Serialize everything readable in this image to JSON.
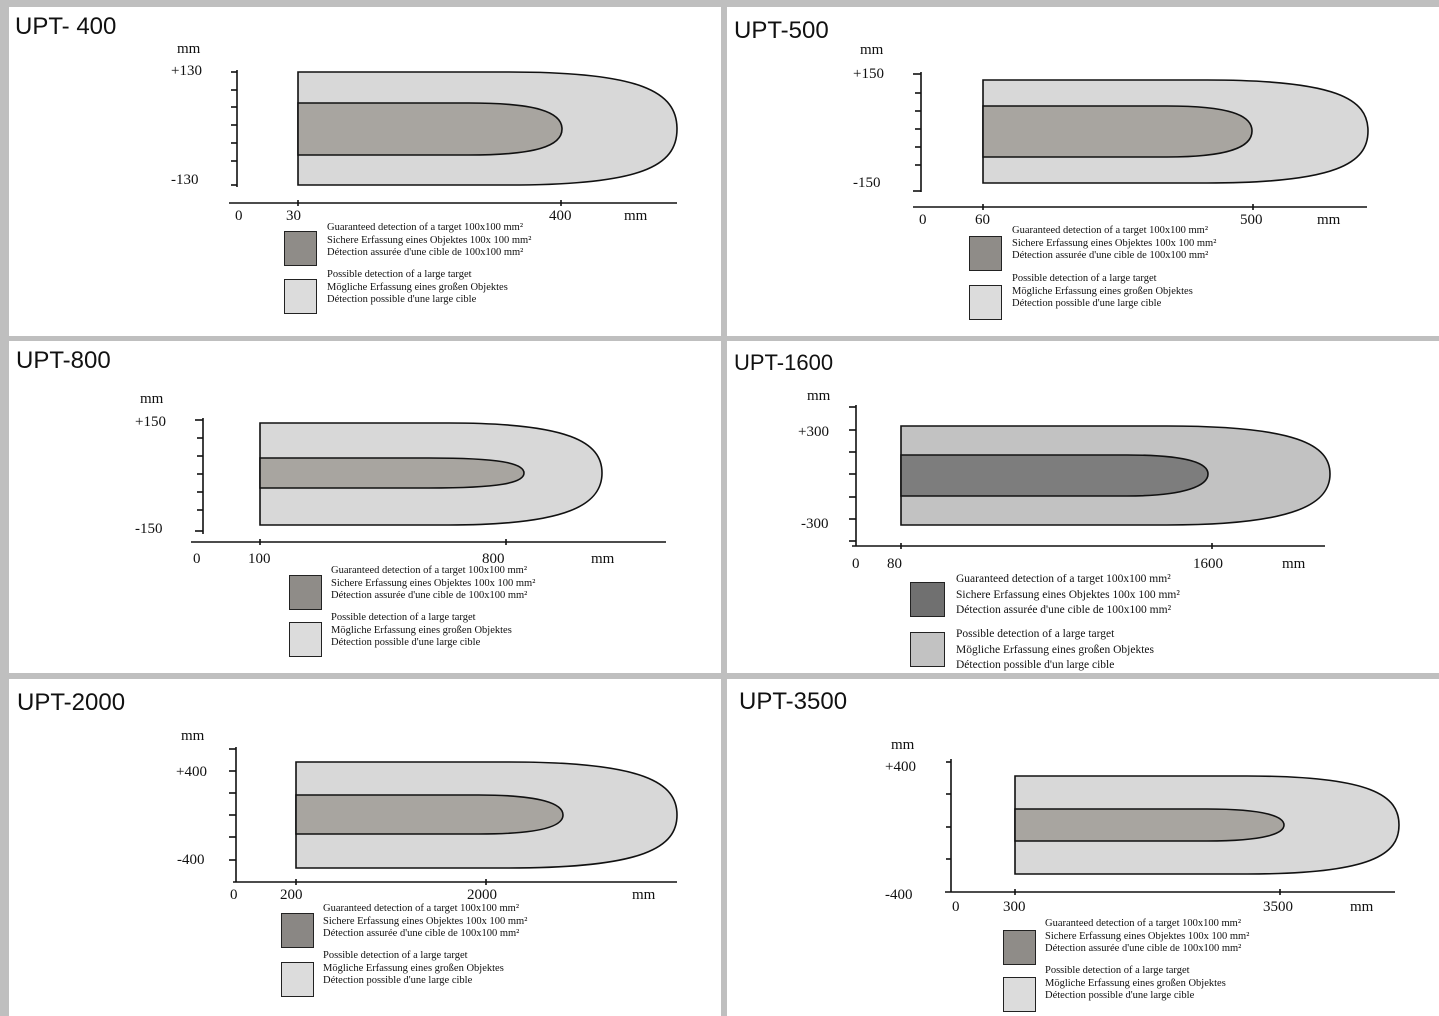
{
  "colors": {
    "outer_zone": "#d8d8d8",
    "inner_zone": "#a8a5a0",
    "inner_zone_dark": "#7d7d7d",
    "outer_zone_mid": "#c2c2c2",
    "line": "#111111"
  },
  "legend": {
    "guaranteed": [
      "Guaranteed detection of a target 100x100 mm²",
      "Sichere Erfassung eines Objektes 100x 100 mm²",
      "Détection assurée d'une cible de 100x100 mm²"
    ],
    "possible": [
      "Possible detection of a large target",
      "Mögliche Erfassung eines großen Objektes",
      "Détection possible d'une large cible"
    ],
    "possible_1600": [
      "Possible detection of a large target",
      "Mögliche Erfassung eines großen Objektes",
      "Détection possible d'un large cible"
    ]
  },
  "charts": [
    {
      "title": "UPT- 400",
      "unit": "mm",
      "y_top": "+130",
      "y_bottom": "-130",
      "x0": "0",
      "x_start": "30",
      "x_end": "400",
      "x_unit": "mm"
    },
    {
      "title": "UPT-500",
      "unit": "mm",
      "y_top": "+150",
      "y_bottom": "-150",
      "x0": "0",
      "x_start": "60",
      "x_end": "500",
      "x_unit": "mm"
    },
    {
      "title": "UPT-800",
      "unit": "mm",
      "y_top": "+150",
      "y_bottom": "-150",
      "x0": "0",
      "x_start": "100",
      "x_end": "800",
      "x_unit": "mm"
    },
    {
      "title": "UPT-1600",
      "unit": "mm",
      "y_top": "+300",
      "y_bottom": "-300",
      "x0": "0",
      "x_start": "80",
      "x_end": "1600",
      "x_unit": "mm"
    },
    {
      "title": "UPT-2000",
      "unit": "mm",
      "y_top": "+400",
      "y_bottom": "-400",
      "x0": "0",
      "x_start": "200",
      "x_end": "2000",
      "x_unit": "mm"
    },
    {
      "title": "UPT-3500",
      "unit": "mm",
      "y_top": "+400",
      "y_bottom": "-400",
      "x0": "0",
      "x_start": "300",
      "x_end": "3500",
      "x_unit": "mm"
    }
  ]
}
